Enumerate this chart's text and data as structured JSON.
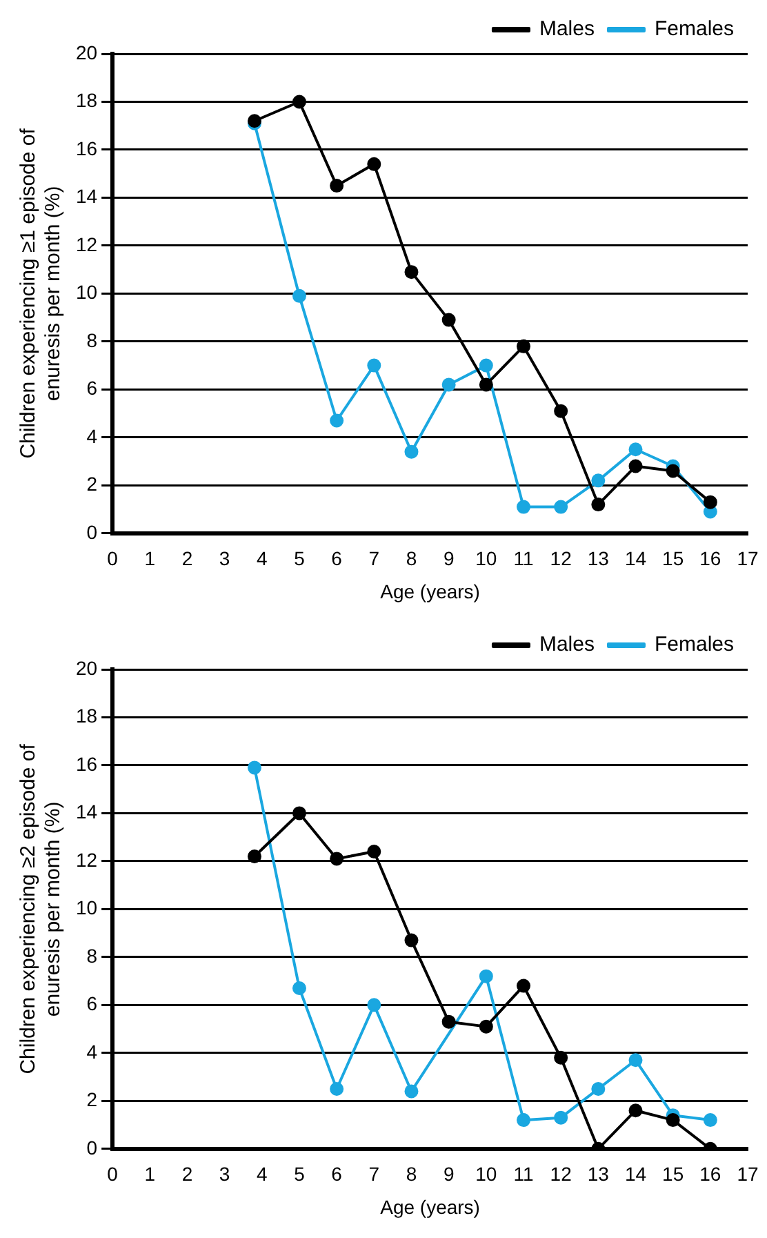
{
  "chart_data": [
    {
      "type": "line",
      "xlabel": "Age (years)",
      "ylabel": "Children experiencing ≥1 episode of enuresis per month (%)",
      "xlim": [
        0,
        17
      ],
      "xticks": [
        0,
        1,
        2,
        3,
        4,
        5,
        6,
        7,
        8,
        9,
        10,
        11,
        12,
        13,
        14,
        15,
        16,
        17
      ],
      "ylim": [
        0,
        20
      ],
      "yticks": [
        0,
        2,
        4,
        6,
        8,
        10,
        12,
        14,
        16,
        18,
        20
      ],
      "grid": "y",
      "legend": "top right",
      "marker": "circle",
      "line_style": "solid",
      "series": [
        {
          "name": "Males",
          "color": "#000000",
          "x": [
            3.8,
            5,
            6,
            7,
            8,
            9,
            10,
            11,
            12,
            13,
            14,
            15,
            16
          ],
          "values": [
            17.2,
            18,
            14.5,
            15.4,
            10.9,
            8.9,
            6.2,
            7.8,
            5.1,
            1.2,
            2.8,
            2.6,
            1.3
          ]
        },
        {
          "name": "Females",
          "color": "#1aa7e0",
          "x": [
            3.8,
            5,
            6,
            7,
            8,
            9,
            10,
            11,
            12,
            13,
            14,
            15,
            16
          ],
          "values": [
            17.1,
            9.9,
            4.7,
            7.0,
            3.4,
            6.2,
            7.0,
            1.1,
            1.1,
            2.2,
            3.5,
            2.8,
            0.9
          ]
        }
      ]
    },
    {
      "type": "line",
      "xlabel": "Age (years)",
      "ylabel": "Children experiencing ≥2 episode of enuresis per month (%)",
      "xlim": [
        0,
        17
      ],
      "xticks": [
        0,
        1,
        2,
        3,
        4,
        5,
        6,
        7,
        8,
        9,
        10,
        11,
        12,
        13,
        14,
        15,
        16,
        17
      ],
      "ylim": [
        0,
        20
      ],
      "yticks": [
        0,
        2,
        4,
        6,
        8,
        10,
        12,
        14,
        16,
        18,
        20
      ],
      "grid": "y",
      "legend": "top right",
      "marker": "circle",
      "line_style": "solid",
      "series": [
        {
          "name": "Males",
          "color": "#000000",
          "x": [
            3.8,
            5,
            6,
            7,
            8,
            9,
            10,
            11,
            12,
            13,
            14,
            15,
            16
          ],
          "values": [
            12.2,
            14.0,
            12.1,
            12.4,
            8.7,
            5.3,
            5.1,
            6.8,
            3.8,
            0,
            1.6,
            1.2,
            0
          ]
        },
        {
          "name": "Females",
          "color": "#1aa7e0",
          "x": [
            3.8,
            5,
            6,
            7,
            8,
            10,
            11,
            12,
            13,
            14,
            15,
            16
          ],
          "values": [
            15.9,
            6.7,
            2.5,
            6.0,
            2.4,
            7.2,
            1.2,
            1.3,
            2.5,
            3.7,
            1.4,
            1.2
          ]
        }
      ]
    }
  ]
}
